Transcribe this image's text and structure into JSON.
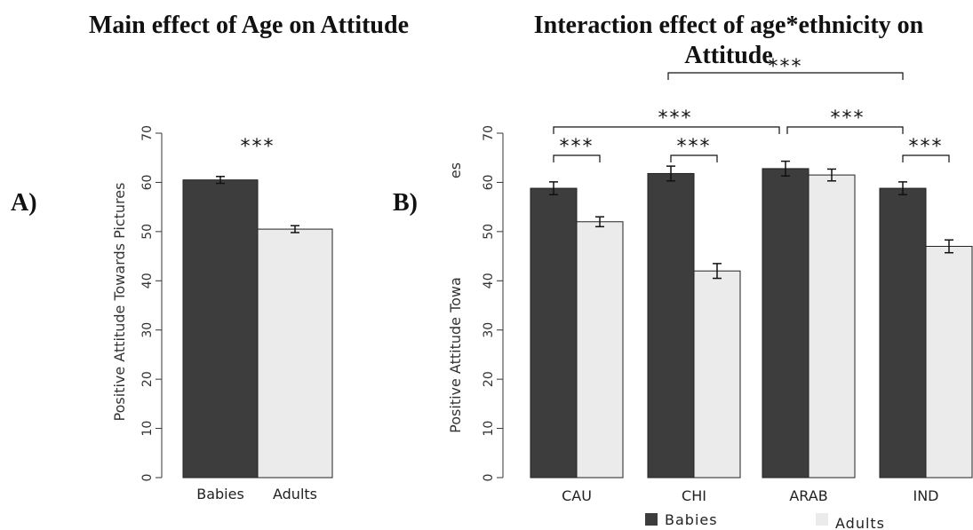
{
  "chart_data": [
    {
      "panel_label": "A)",
      "type": "bar",
      "title": "Main effect of Age on Attitude",
      "ylabel": "Positive Attitude Towards Pictures",
      "ylim": [
        0,
        70
      ],
      "yticks": [
        "0",
        "10",
        "20",
        "30",
        "40",
        "50",
        "60",
        "70"
      ],
      "categories": [
        "Babies",
        "Adults"
      ],
      "values": [
        60.5,
        50.5
      ],
      "errors": [
        0.7,
        0.7
      ],
      "colors": [
        "#3d3d3d",
        "#ebebeb"
      ],
      "significance": [
        "***"
      ],
      "grid": false
    },
    {
      "panel_label": "B)",
      "type": "bar",
      "title": "Interaction effect of age*ethnicity on Attitude",
      "title_overlap_text": "***",
      "ylabel": "Positive Attitude Towa",
      "ylabel_clip": "es",
      "ylim": [
        0,
        70
      ],
      "yticks": [
        "0",
        "10",
        "20",
        "30",
        "40",
        "50",
        "60",
        "70"
      ],
      "categories": [
        "CAU",
        "CHI",
        "ARAB",
        "IND"
      ],
      "series": [
        {
          "name": "Babies",
          "values": [
            58.8,
            61.8,
            62.8,
            58.8
          ],
          "errors": [
            1.3,
            1.5,
            1.5,
            1.3
          ],
          "color": "#3d3d3d"
        },
        {
          "name": "Adults",
          "values": [
            52.0,
            42.0,
            61.5,
            47.0
          ],
          "errors": [
            1.0,
            1.5,
            1.2,
            1.3
          ],
          "color": "#ebebeb"
        }
      ],
      "significance": [
        "***",
        "***",
        "***",
        "***",
        "***",
        "***"
      ],
      "legend": "bottom",
      "grid": false
    }
  ]
}
